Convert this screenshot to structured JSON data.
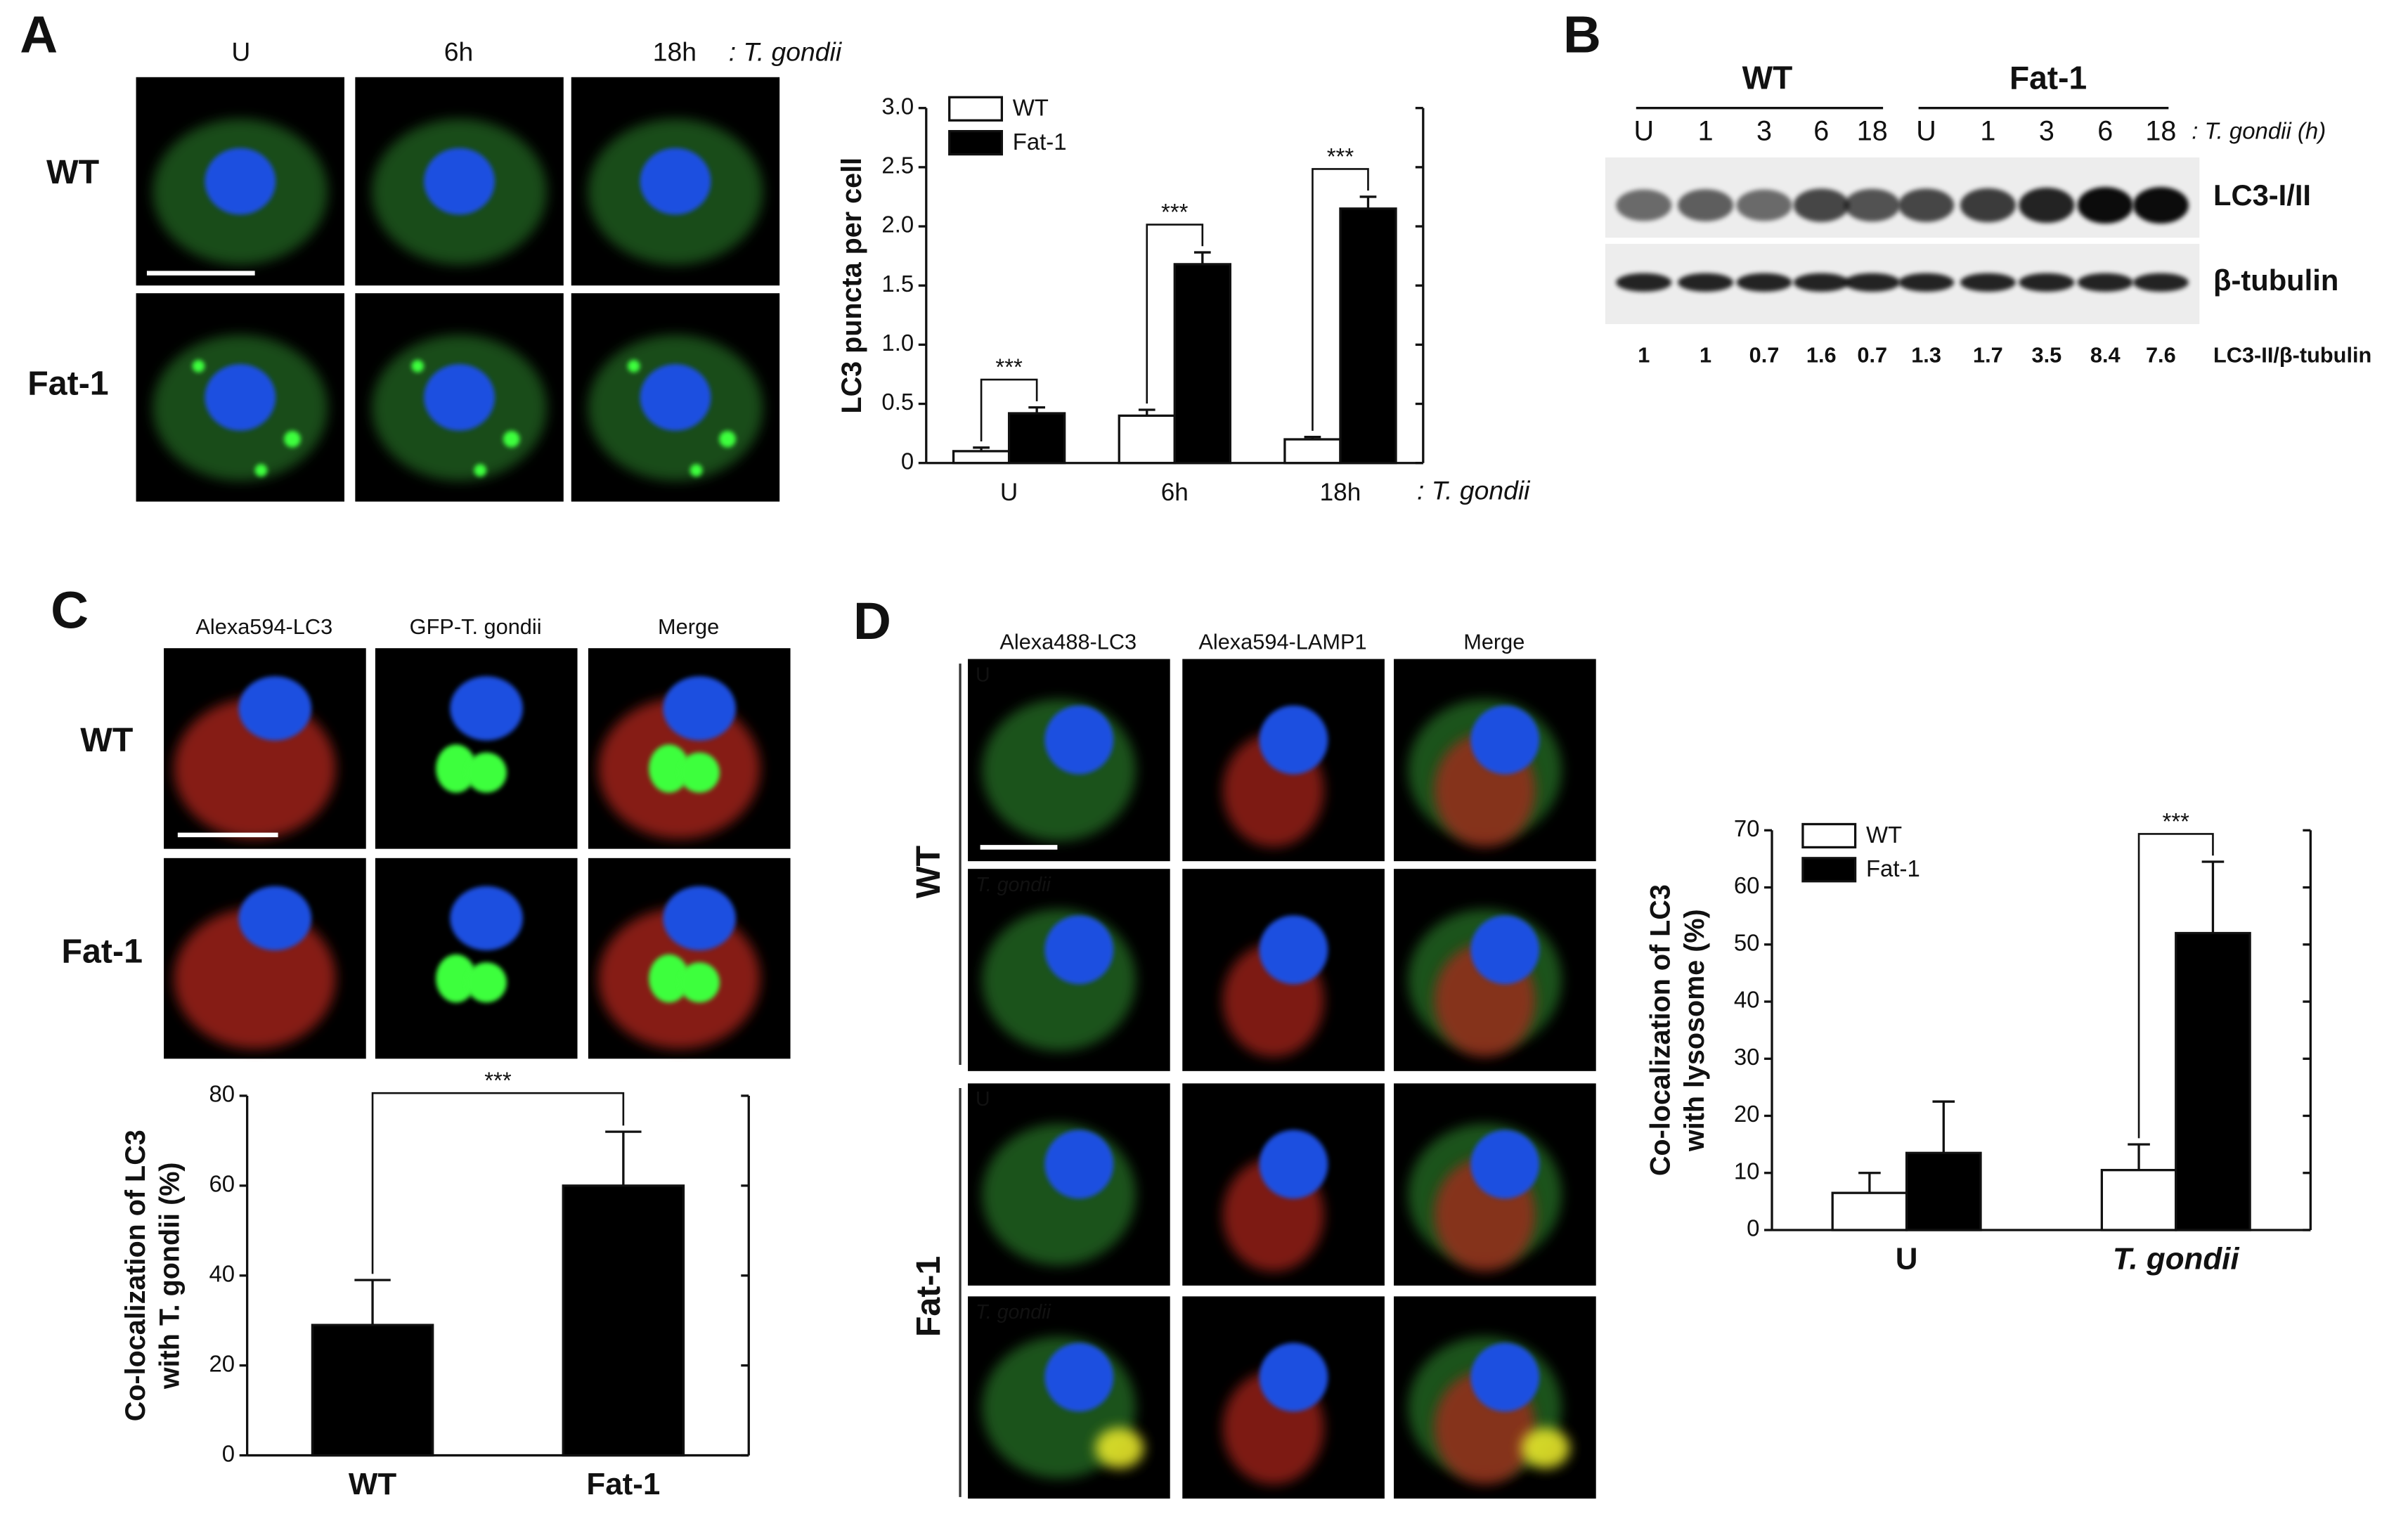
{
  "panel_labels": [
    "A",
    "B",
    "C",
    "D"
  ],
  "panel_a": {
    "columns": [
      "U",
      "6h",
      "18h"
    ],
    "organism": ": T. gondii",
    "rows": [
      "WT",
      "Fat-1"
    ]
  },
  "panel_b": {
    "groups": [
      "WT",
      "Fat-1"
    ],
    "lanes": [
      "U",
      "1",
      "3",
      "6",
      "18",
      "U",
      "1",
      "3",
      "6",
      "18"
    ],
    "lane_unit": ": T. gondii (h)",
    "bands": [
      "LC3-I/II",
      "β-tubulin"
    ],
    "ratios": [
      1,
      1,
      0.7,
      1.6,
      0.7,
      1.3,
      1.7,
      3.5,
      8.4,
      7.6
    ],
    "ratio_label": "LC3-II/β-tubulin"
  },
  "panel_c": {
    "columns": [
      "Alexa594-LC3",
      "GFP-T. gondii",
      "Merge"
    ],
    "rows": [
      "WT",
      "Fat-1"
    ]
  },
  "panel_d": {
    "columns": [
      "Alexa488-LC3",
      "Alexa594-LAMP1",
      "Merge"
    ],
    "rows": [
      "WT",
      "Fat-1"
    ],
    "conditions": [
      "U",
      "T. gondii",
      "U",
      "T. gondii"
    ]
  },
  "chart_data": [
    {
      "type": "bar",
      "ylabel": [
        "LC3 puncta per cell"
      ],
      "xlabel": ": T. gondii",
      "categories": [
        "U",
        "6h",
        "18h"
      ],
      "series": [
        {
          "name": "WT",
          "color": "#ffffff",
          "values": [
            0.1,
            0.4,
            0.2
          ],
          "errors": [
            0.03,
            0.05,
            0.02
          ]
        },
        {
          "name": "Fat-1",
          "color": "#000000",
          "values": [
            0.42,
            1.68,
            2.15
          ],
          "errors": [
            0.05,
            0.1,
            0.1
          ]
        }
      ],
      "ylim": [
        0,
        3
      ],
      "yticks": [
        0,
        0.5,
        {
          "value": 1,
          "label": "1.0"
        },
        1.5,
        {
          "value": 2,
          "label": "2.0"
        },
        2.5,
        {
          "value": 3,
          "label": "3.0"
        }
      ],
      "legend": "top-left",
      "annotations": [
        {
          "text": "***",
          "category": "U"
        },
        {
          "text": "***",
          "category": "6h"
        },
        {
          "text": "***",
          "category": "18h"
        }
      ]
    },
    {
      "type": "bar",
      "ylabel": [
        "Co-localization of LC3",
        "with T. gondii (%)"
      ],
      "categories": [
        "WT",
        "Fat-1"
      ],
      "values": [
        29,
        60
      ],
      "errors": [
        10,
        12
      ],
      "color": "#000000",
      "ylim": [
        0,
        80
      ],
      "yticks": [
        0,
        20,
        40,
        60,
        80
      ],
      "annotations": [
        {
          "text": "***"
        }
      ]
    },
    {
      "type": "bar",
      "ylabel": [
        "Co-localization of LC3",
        "with lysosome (%)"
      ],
      "categories": [
        "U",
        "T. gondii"
      ],
      "series": [
        {
          "name": "WT",
          "color": "#ffffff",
          "values": [
            6.5,
            10.5
          ],
          "errors": [
            3.5,
            4.5
          ]
        },
        {
          "name": "Fat-1",
          "color": "#000000",
          "values": [
            13.5,
            52
          ],
          "errors": [
            9,
            12.5
          ]
        }
      ],
      "ylim": [
        0,
        70
      ],
      "yticks": [
        0,
        10,
        20,
        30,
        40,
        50,
        60,
        70
      ],
      "legend": "top-left",
      "annotations": [
        {
          "text": "***",
          "category": "T. gondii"
        }
      ]
    }
  ]
}
